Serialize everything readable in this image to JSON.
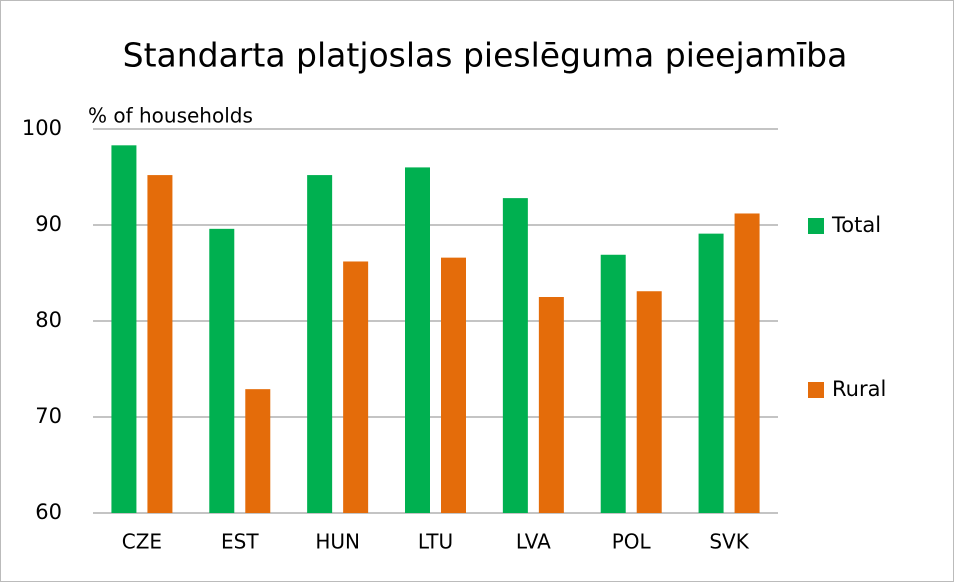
{
  "chart_data": {
    "type": "bar",
    "title": "Standarta platjoslas pieslēguma pieejamība",
    "y_label": "% of households",
    "categories": [
      "CZE",
      "EST",
      "HUN",
      "LTU",
      "LVA",
      "POL",
      "SVK"
    ],
    "series": [
      {
        "name": "Total",
        "color": "#00b050",
        "values": [
          98.3,
          89.6,
          95.2,
          96.0,
          92.8,
          86.9,
          89.1
        ]
      },
      {
        "name": "Rural",
        "color": "#e46c0a",
        "values": [
          95.2,
          72.9,
          86.2,
          86.6,
          82.5,
          83.1,
          91.2
        ]
      }
    ],
    "ylim": [
      60,
      100
    ],
    "yticks": [
      60,
      70,
      80,
      90,
      100
    ],
    "grid": true,
    "legend": "right"
  }
}
